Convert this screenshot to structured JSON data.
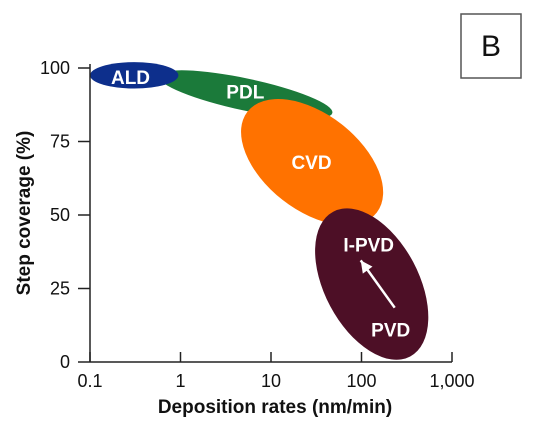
{
  "panel_label": "B",
  "chart_data": {
    "type": "scatter",
    "title": "",
    "xlabel": "Deposition rates (nm/min)",
    "ylabel": "Step coverage (%)",
    "xscale": "log",
    "xlim": [
      0.1,
      1000
    ],
    "ylim": [
      0,
      100
    ],
    "x_ticks": [
      "0.1",
      "1",
      "10",
      "100",
      "1,000"
    ],
    "x_tick_values": [
      0.1,
      1,
      10,
      100,
      1000
    ],
    "y_ticks": [
      "0",
      "25",
      "50",
      "75",
      "100"
    ],
    "y_tick_values": [
      0,
      25,
      50,
      75,
      100
    ],
    "grid": false,
    "regions": [
      {
        "name": "PDL",
        "x_range": [
          0.5,
          55
        ],
        "y_range": [
          82,
          100
        ],
        "color": "#1b7a3a"
      },
      {
        "name": "ALD",
        "x_range": [
          0.1,
          0.95
        ],
        "y_range": [
          93,
          102
        ],
        "color": "#0d2f8c"
      },
      {
        "name": "CVD",
        "x_range": [
          4.5,
          180
        ],
        "y_range": [
          48,
          88
        ],
        "color": "#ff7200"
      },
      {
        "name": "I-PVD",
        "x_range": [
          30,
          560
        ],
        "y_range": [
          1,
          52
        ],
        "color": "#4d0f26"
      },
      {
        "name": "PVD",
        "x_range": [
          30,
          560
        ],
        "y_range": [
          1,
          52
        ],
        "color": "#4d0f26"
      }
    ],
    "annotations": [
      {
        "type": "arrow",
        "from": "PVD",
        "to": "I-PVD",
        "color": "#ffffff"
      }
    ]
  }
}
